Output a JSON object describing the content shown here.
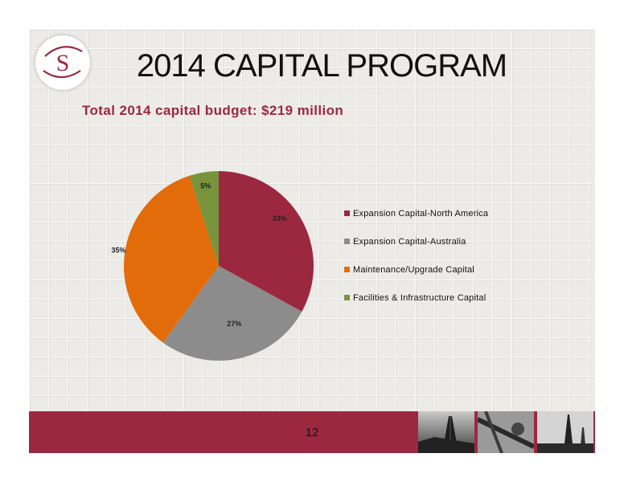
{
  "slide": {
    "logo_letter": "S",
    "title": "2014 CAPITAL PROGRAM",
    "subtitle": "Total 2014 capital budget: $219 million",
    "page_number": "12"
  },
  "colors": {
    "brand": "#9c2840",
    "expansion_na": "#9c2840",
    "expansion_au": "#8c8c8c",
    "maintenance": "#e36c0a",
    "facilities": "#77933c"
  },
  "chart_data": {
    "type": "pie",
    "title": "",
    "legend_position": "right",
    "slices": [
      {
        "name": "Expansion Capital-North America",
        "value": 33,
        "label": "33%",
        "color": "#9c2840"
      },
      {
        "name": "Expansion Capital-Australia",
        "value": 27,
        "label": "27%",
        "color": "#8c8c8c"
      },
      {
        "name": "Maintenance/Upgrade Capital",
        "value": 35,
        "label": "35%",
        "color": "#e36c0a"
      },
      {
        "name": "Facilities & Infrastructure Capital",
        "value": 5,
        "label": "5%",
        "color": "#77933c"
      }
    ]
  }
}
